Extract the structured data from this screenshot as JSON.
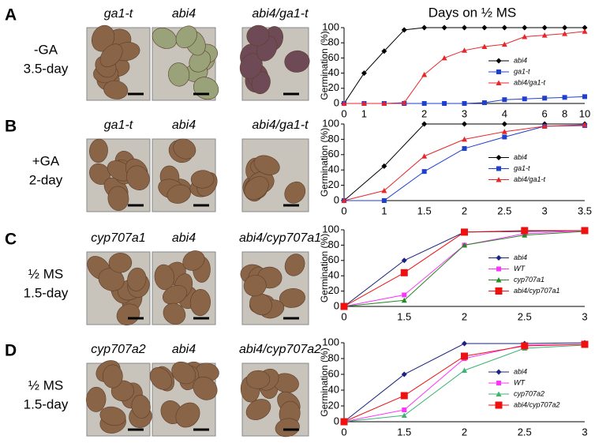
{
  "panels": [
    {
      "letter": "A",
      "condition": [
        "-GA",
        "3.5-day"
      ],
      "photos": [
        "ga1-t",
        "abi4",
        "abi4/ga1-t"
      ]
    },
    {
      "letter": "B",
      "condition": [
        "+GA",
        "2-day"
      ],
      "photos": [
        "ga1-t",
        "abi4",
        "abi4/ga1-t"
      ]
    },
    {
      "letter": "C",
      "condition": [
        "½ MS",
        "1.5-day"
      ],
      "photos": [
        "cyp707a1",
        "abi4",
        "abi4/cyp707a1"
      ]
    },
    {
      "letter": "D",
      "condition": [
        "½ MS",
        "1.5-day"
      ],
      "photos": [
        "cyp707a2",
        "abi4",
        "abi4/cyp707a2"
      ]
    }
  ],
  "chart_data": [
    {
      "type": "line",
      "title": "Days on ½ MS",
      "y_label": "Germination (%)",
      "categories": [
        "0",
        "1",
        null,
        null,
        "2",
        null,
        "3",
        null,
        "4",
        null,
        "6",
        "8",
        "10"
      ],
      "series": [
        {
          "name": "abi4",
          "color": "#000000",
          "marker": "diamond",
          "values": [
            0,
            40,
            69,
            97,
            100,
            100,
            100,
            100,
            100,
            100,
            100,
            100,
            100
          ]
        },
        {
          "name": "ga1-t",
          "color": "#1f3fcf",
          "marker": "square",
          "values": [
            0,
            0,
            0,
            0,
            0,
            0,
            0,
            1,
            5,
            6,
            7,
            8,
            9
          ]
        },
        {
          "name": "abi4/ga1-t",
          "color": "#e8262a",
          "marker": "triangle",
          "values": [
            0,
            0,
            0,
            1,
            38,
            60,
            70,
            75,
            78,
            88,
            90,
            92,
            95
          ]
        }
      ],
      "ylim": [
        0,
        100
      ],
      "yticks": [
        0,
        20,
        40,
        60,
        80,
        100
      ],
      "legend": "right"
    },
    {
      "type": "line",
      "y_label": "Germination (%)",
      "categories": [
        "0",
        "1",
        "1.5",
        "2",
        "2.5",
        "3",
        "3.5"
      ],
      "series": [
        {
          "name": "abi4",
          "color": "#000000",
          "marker": "diamond",
          "values": [
            0,
            45,
            100,
            100,
            100,
            100,
            100
          ]
        },
        {
          "name": "ga1-t",
          "color": "#1f3fcf",
          "marker": "square",
          "values": [
            0,
            0,
            38,
            68,
            83,
            97,
            98
          ]
        },
        {
          "name": "abi4/ga1-t",
          "color": "#e8262a",
          "marker": "triangle",
          "values": [
            0,
            13,
            58,
            80,
            90,
            97,
            99
          ]
        }
      ],
      "ylim": [
        0,
        100
      ],
      "yticks": [
        0,
        20,
        40,
        60,
        80,
        100
      ],
      "legend": "right"
    },
    {
      "type": "line",
      "y_label": "Germination (%)",
      "categories": [
        "0",
        "1.5",
        "2",
        "2.5",
        "3"
      ],
      "series": [
        {
          "name": "abi4",
          "color": "#1a237e",
          "marker": "diamond",
          "values": [
            0,
            60,
            97,
            98,
            99
          ]
        },
        {
          "name": "WT",
          "color": "#ff33ff",
          "marker": "square",
          "values": [
            0,
            15,
            80,
            95,
            99
          ]
        },
        {
          "name": "cyp707a1",
          "color": "#228b22",
          "marker": "triangle",
          "values": [
            0,
            8,
            80,
            93,
            98
          ]
        },
        {
          "name": "abi4/cyp707a1",
          "color": "#ee1111",
          "marker": "bigsquare",
          "values": [
            0,
            44,
            97,
            99,
            99
          ]
        }
      ],
      "ylim": [
        0,
        100
      ],
      "yticks": [
        0,
        20,
        40,
        60,
        80,
        100
      ],
      "legend": "right"
    },
    {
      "type": "line",
      "y_label": "Germination (%)",
      "categories": [
        "0",
        "1.5",
        "2",
        "2.5",
        "3"
      ],
      "series": [
        {
          "name": "abi4",
          "color": "#1a237e",
          "marker": "diamond",
          "values": [
            0,
            60,
            99,
            99,
            100
          ]
        },
        {
          "name": "WT",
          "color": "#ff33ff",
          "marker": "square",
          "values": [
            0,
            15,
            80,
            97,
            98
          ]
        },
        {
          "name": "cyp707a2",
          "color": "#3cb371",
          "marker": "triangle",
          "values": [
            0,
            8,
            65,
            93,
            97
          ]
        },
        {
          "name": "abi4/cyp707a2",
          "color": "#ee1111",
          "marker": "bigsquare",
          "values": [
            0,
            33,
            83,
            96,
            98
          ]
        }
      ],
      "ylim": [
        0,
        100
      ],
      "yticks": [
        0,
        20,
        40,
        60,
        80,
        100
      ],
      "legend": "right"
    }
  ]
}
